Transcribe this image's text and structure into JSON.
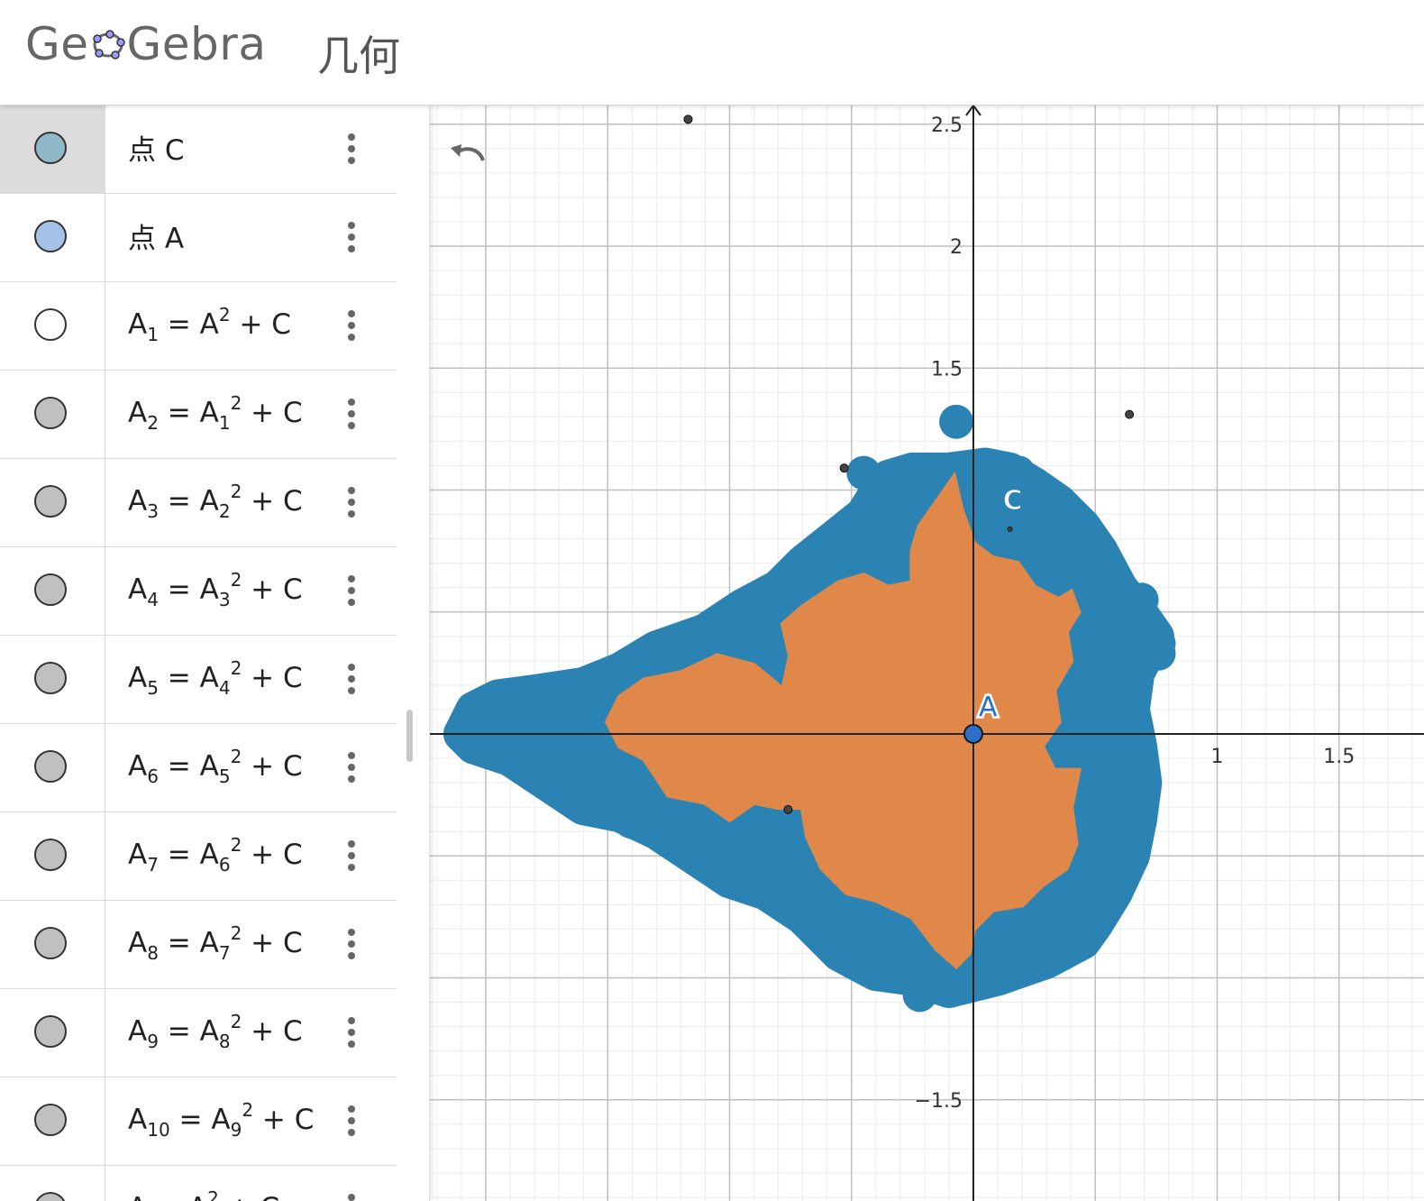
{
  "header": {
    "logo_left": "Ge",
    "logo_right": "Gebra",
    "app_title": "几何"
  },
  "algebra": {
    "rows": [
      {
        "prefix": "点 C",
        "color": "#8fb8c9"
      },
      {
        "prefix": "点 A",
        "color": "#a6c1e8"
      },
      {
        "lhs": "A",
        "lhs_sub": "1",
        "rhs": "A",
        "rhs_sub": "",
        "color": "#ffffff"
      },
      {
        "lhs": "A",
        "lhs_sub": "2",
        "rhs": "A",
        "rhs_sub": "1",
        "color": "#c0c0c0"
      },
      {
        "lhs": "A",
        "lhs_sub": "3",
        "rhs": "A",
        "rhs_sub": "2",
        "color": "#c0c0c0"
      },
      {
        "lhs": "A",
        "lhs_sub": "4",
        "rhs": "A",
        "rhs_sub": "3",
        "color": "#c0c0c0"
      },
      {
        "lhs": "A",
        "lhs_sub": "5",
        "rhs": "A",
        "rhs_sub": "4",
        "color": "#c0c0c0"
      },
      {
        "lhs": "A",
        "lhs_sub": "6",
        "rhs": "A",
        "rhs_sub": "5",
        "color": "#c0c0c0"
      },
      {
        "lhs": "A",
        "lhs_sub": "7",
        "rhs": "A",
        "rhs_sub": "6",
        "color": "#c0c0c0"
      },
      {
        "lhs": "A",
        "lhs_sub": "8",
        "rhs": "A",
        "rhs_sub": "7",
        "color": "#c0c0c0"
      },
      {
        "lhs": "A",
        "lhs_sub": "9",
        "rhs": "A",
        "rhs_sub": "8",
        "color": "#c0c0c0"
      },
      {
        "lhs": "A",
        "lhs_sub": "10",
        "rhs": "A",
        "rhs_sub": "9",
        "color": "#c0c0c0"
      },
      {
        "lhs": "A",
        "lhs_sub": "",
        "rhs": "A",
        "rhs_sub": "",
        "color": "#c0c0c0"
      }
    ],
    "exponent": "2",
    "plus_c": "+ C",
    "equals": "="
  },
  "graph": {
    "x_ticks": [
      "1",
      "1.5"
    ],
    "y_ticks": [
      "2.5",
      "2",
      "1.5",
      "−1.5"
    ],
    "point_A": "A",
    "point_C": "C",
    "colors": {
      "fill_blue": "#2a83b3",
      "fill_orange": "#e0874a",
      "point_a": "#2a6fc9"
    }
  }
}
